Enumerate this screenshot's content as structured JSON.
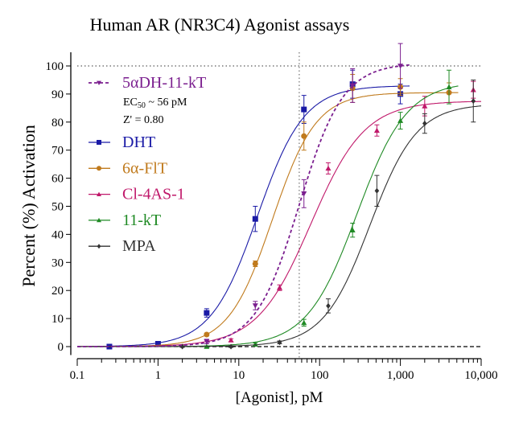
{
  "chart_data": {
    "type": "line",
    "title": "Human AR (NR3C4) Agonist assays",
    "xlabel": "[Agonist], pM",
    "ylabel": "Percent (%) Activation",
    "xscale": "log",
    "xlim": [
      0.1,
      10000
    ],
    "ylim": [
      -3,
      105
    ],
    "xticks": [
      0.1,
      1,
      10,
      100,
      1000,
      10000
    ],
    "xtick_labels": [
      "0.1",
      "1",
      "10",
      "100",
      "1,000",
      "10,000"
    ],
    "yticks": [
      0,
      10,
      20,
      30,
      40,
      50,
      60,
      70,
      80,
      90,
      100
    ],
    "ytick_labels": [
      "0",
      "10",
      "20",
      "30",
      "40",
      "50",
      "60",
      "70",
      "80",
      "90",
      "100"
    ],
    "reference_lines": {
      "y_top": 100,
      "y_zero": 0,
      "x_ec50": 56
    },
    "annotation": {
      "ec50_prefix": "EC",
      "ec50_sub": "50",
      "ec50_text": " ~ 56 pM",
      "z_prime": "Z' = 0.80"
    },
    "legend_position": "top-left",
    "series": [
      {
        "name": "5αDH-11-kT",
        "color": "#7b1f8f",
        "marker": "triangle-down",
        "dashed": true,
        "fit": {
          "bottom": 0,
          "top": 101,
          "ec50": 56,
          "hill": 1.6
        },
        "x": [
          4,
          16,
          64,
          256,
          1000
        ],
        "y": [
          1.8,
          14.6,
          54.5,
          93,
          100
        ],
        "err": [
          0.8,
          1.5,
          5,
          6,
          8
        ]
      },
      {
        "name": "DHT",
        "color": "#1a1aa6",
        "marker": "square",
        "dashed": false,
        "fit": {
          "bottom": 0,
          "top": 93,
          "ec50": 17,
          "hill": 1.5
        },
        "x": [
          0.25,
          1,
          4,
          16,
          64,
          256,
          1000
        ],
        "y": [
          0,
          1,
          12,
          45.5,
          84.5,
          93.5,
          90
        ],
        "err": [
          0.5,
          0.5,
          1.5,
          4.5,
          5,
          5,
          3.5
        ]
      },
      {
        "name": "6α-FlT",
        "color": "#c07a1c",
        "marker": "circle",
        "dashed": false,
        "fit": {
          "bottom": 0,
          "top": 90.5,
          "ec50": 26,
          "hill": 1.6
        },
        "x": [
          4,
          16,
          64,
          256,
          1000,
          4000
        ],
        "y": [
          4.3,
          29.5,
          75,
          92,
          92.5,
          90.5
        ],
        "err": [
          0.5,
          1,
          5,
          5,
          3,
          3.5
        ]
      },
      {
        "name": "Cl-4AS-1",
        "color": "#c0186a",
        "marker": "triangle",
        "dashed": false,
        "fit": {
          "bottom": 0,
          "top": 87.5,
          "ec50": 78,
          "hill": 1.3
        },
        "x": [
          8,
          32,
          128,
          512,
          2000,
          8000
        ],
        "y": [
          2.3,
          21,
          63.5,
          77,
          85.7,
          91.5
        ],
        "err": [
          0.5,
          1,
          2,
          2,
          3.5,
          3
        ]
      },
      {
        "name": "11-kT",
        "color": "#1f8a24",
        "marker": "triangle",
        "dashed": false,
        "fit": {
          "bottom": 0,
          "top": 94.5,
          "ec50": 290,
          "hill": 1.4
        },
        "x": [
          4,
          16,
          64,
          256,
          1000,
          4000
        ],
        "y": [
          0,
          0.8,
          8.5,
          41.5,
          80.5,
          92.5
        ],
        "err": [
          0.3,
          0.5,
          1.2,
          2.5,
          3,
          6
        ]
      },
      {
        "name": "MPA",
        "color": "#333333",
        "marker": "diamond",
        "dashed": false,
        "fit": {
          "bottom": 0,
          "top": 86.5,
          "ec50": 420,
          "hill": 1.5
        },
        "x": [
          2,
          8,
          32,
          128,
          512,
          2000,
          8000
        ],
        "y": [
          0,
          0,
          1.5,
          14.5,
          55.5,
          79.5,
          87.5
        ],
        "err": [
          0.3,
          0.3,
          0.5,
          2.5,
          5.5,
          3.5,
          7.5
        ]
      }
    ]
  }
}
